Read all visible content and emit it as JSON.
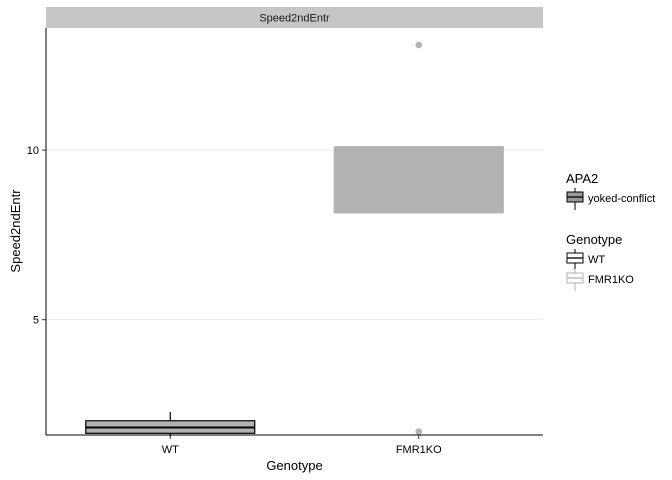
{
  "chart_data": {
    "type": "boxplot",
    "facet_label": "Speed2ndEntr",
    "xlabel": "Genotype",
    "ylabel": "Speed2ndEntr",
    "categories": [
      "WT",
      "FMR1KO"
    ],
    "ylim": [
      1.6,
      13.6
    ],
    "yticks": [
      5,
      10
    ],
    "grid": "horizontal major",
    "boxes": [
      {
        "category": "WT",
        "genotype": "WT",
        "fill": "#b2b2b2",
        "outline": "#000000",
        "whisker_low": 1.55,
        "q1": 1.65,
        "median": 1.82,
        "q3": 2.02,
        "whisker_high": 2.28,
        "outliers": []
      },
      {
        "category": "FMR1KO",
        "genotype": "FMR1KO",
        "fill": "#b2b2b2",
        "outline": "#b2b2b2",
        "whisker_low": 8.15,
        "q1": 8.15,
        "median": 8.2,
        "q3": 10.1,
        "whisker_high": 10.1,
        "outliers": [
          13.1,
          1.7
        ]
      }
    ],
    "legends": [
      {
        "title": "APA2",
        "entries": [
          {
            "label": "yoked-conflict",
            "fill": "#999999",
            "outline": "#000000"
          }
        ]
      },
      {
        "title": "Genotype",
        "entries": [
          {
            "label": "WT",
            "fill": "#ffffff",
            "outline": "#000000"
          },
          {
            "label": "FMR1KO",
            "fill": "#ffffff",
            "outline": "#b2b2b2"
          }
        ]
      }
    ],
    "legend_position": "right",
    "colors": {
      "box_fill": "#b2b2b2",
      "wt_outline": "#000000",
      "fmr1ko_outline": "#b2b2b2",
      "strip": "#c6c6c6",
      "grid": "#ebebeb"
    }
  }
}
